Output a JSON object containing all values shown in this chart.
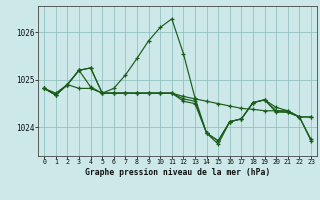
{
  "title": "Graphe pression niveau de la mer (hPa)",
  "bg_color": "#cce8e8",
  "grid_color": "#88bbbb",
  "line_color": "#1a5c1a",
  "marker": "+",
  "xticks": [
    0,
    1,
    2,
    3,
    4,
    5,
    6,
    7,
    8,
    9,
    10,
    11,
    12,
    13,
    14,
    15,
    16,
    17,
    18,
    19,
    20,
    21,
    22,
    23
  ],
  "yticks": [
    1024,
    1025,
    1026
  ],
  "ylim": [
    1023.4,
    1026.55
  ],
  "xlim": [
    -0.5,
    23.5
  ],
  "series": [
    [
      1024.82,
      1024.72,
      1024.9,
      1024.82,
      1024.82,
      1024.72,
      1024.72,
      1024.72,
      1024.72,
      1024.72,
      1024.72,
      1024.72,
      1024.65,
      1024.6,
      1024.55,
      1024.5,
      1024.45,
      1024.4,
      1024.38,
      1024.35,
      1024.35,
      1024.32,
      1024.22,
      1023.75
    ],
    [
      1024.82,
      1024.68,
      1024.9,
      1025.2,
      1025.25,
      1024.72,
      1024.82,
      1025.1,
      1025.45,
      1025.82,
      1026.1,
      1026.28,
      1025.55,
      1024.62,
      1023.88,
      1023.72,
      1024.12,
      1024.18,
      1024.52,
      1024.58,
      1024.42,
      1024.35,
      1024.22,
      1024.22
    ],
    [
      1024.82,
      1024.68,
      1024.9,
      1025.2,
      1025.25,
      1024.72,
      1024.72,
      1024.72,
      1024.72,
      1024.72,
      1024.72,
      1024.72,
      1024.6,
      1024.55,
      1023.88,
      1023.72,
      1024.12,
      1024.18,
      1024.52,
      1024.58,
      1024.32,
      1024.32,
      1024.22,
      1024.22
    ],
    [
      1024.82,
      1024.68,
      1024.9,
      1025.2,
      1024.85,
      1024.72,
      1024.72,
      1024.72,
      1024.72,
      1024.72,
      1024.72,
      1024.72,
      1024.55,
      1024.5,
      1023.88,
      1023.65,
      1024.12,
      1024.18,
      1024.52,
      1024.58,
      1024.35,
      1024.35,
      1024.22,
      1023.72
    ]
  ]
}
